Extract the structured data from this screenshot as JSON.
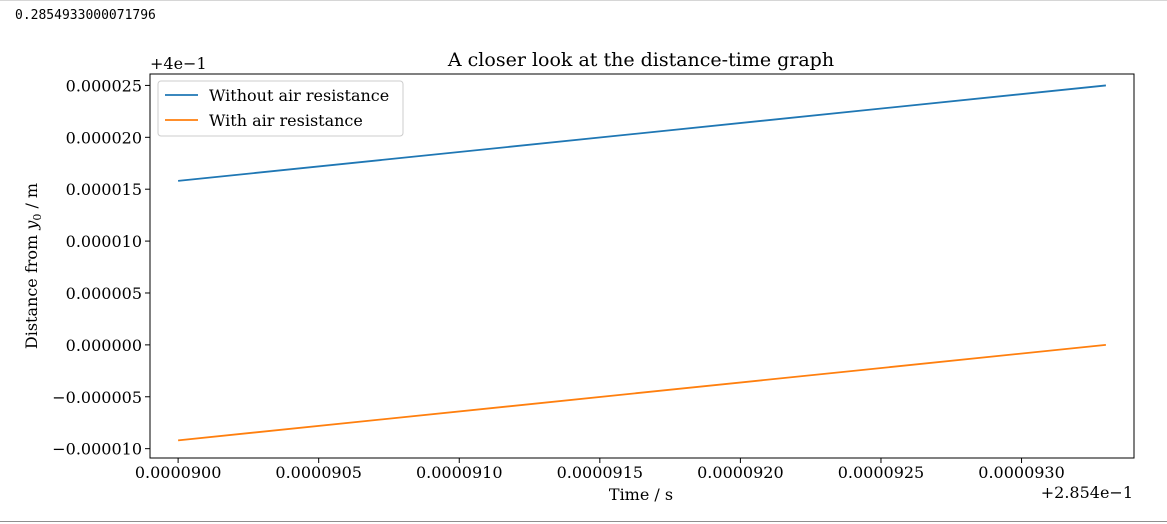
{
  "output": {
    "value_text": "0.2854933000071796"
  },
  "colors": {
    "series_without": "#1f77b4",
    "series_with": "#ff7f0e"
  },
  "chart_data": {
    "type": "line",
    "title": "A closer look at the distance-time graph",
    "xlabel": "Time / s",
    "ylabel_prefix": "Distance from ",
    "ylabel_var": "y",
    "ylabel_sub": "0",
    "ylabel_suffix": " / m",
    "x_offset_label": "+2.854e−1",
    "y_offset_label": "+4e−1",
    "x_offset": 0.2854,
    "y_offset": 0.4,
    "xlim": [
      8.99e-05,
      9.34e-05
    ],
    "ylim": [
      -1.09e-05,
      2.61e-05
    ],
    "xticks": [
      9e-05,
      9.05e-05,
      9.1e-05,
      9.15e-05,
      9.2e-05,
      9.25e-05,
      9.3e-05
    ],
    "xtick_labels": [
      "0.0000900",
      "0.0000905",
      "0.0000910",
      "0.0000915",
      "0.0000920",
      "0.0000925",
      "0.0000930"
    ],
    "yticks": [
      -1e-05,
      -5e-06,
      0,
      5e-06,
      1e-05,
      1.5e-05,
      2e-05,
      2.5e-05
    ],
    "ytick_labels": [
      "−0.000010",
      "−0.000005",
      "0.000000",
      "0.000005",
      "0.000010",
      "0.000015",
      "0.000020",
      "0.000025"
    ],
    "grid": false,
    "legend_position": "top-left",
    "series": [
      {
        "name": "Without air resistance",
        "color": "#1f77b4",
        "x": [
          9e-05,
          9.33e-05
        ],
        "y": [
          1.58e-05,
          2.5e-05
        ]
      },
      {
        "name": "With air resistance",
        "color": "#ff7f0e",
        "x": [
          9e-05,
          9.33e-05
        ],
        "y": [
          -9.2e-06,
          0.0
        ]
      }
    ]
  }
}
